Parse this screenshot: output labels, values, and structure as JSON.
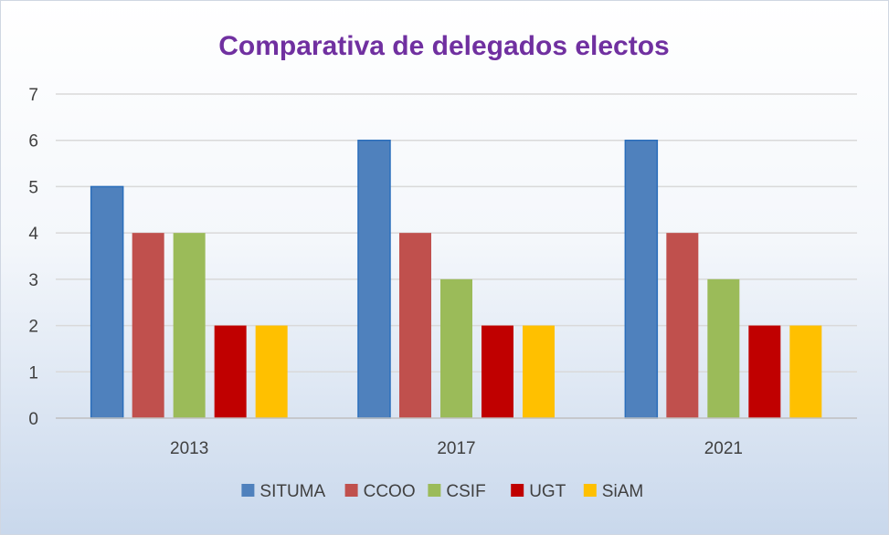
{
  "chart_data": {
    "type": "bar",
    "title": "Comparativa de delegados electos",
    "xlabel": "",
    "ylabel": "",
    "categories": [
      "2013",
      "2017",
      "2021"
    ],
    "ylim": [
      0,
      7
    ],
    "yticks": [
      "0",
      "1",
      "2",
      "3",
      "4",
      "5",
      "6",
      "7"
    ],
    "grid": true,
    "legend_position": "bottom",
    "series": [
      {
        "name": "SITUMA",
        "values": [
          5,
          6,
          6
        ],
        "color": "#4f81bd"
      },
      {
        "name": "CCOO",
        "values": [
          4,
          4,
          4
        ],
        "color": "#c0504d"
      },
      {
        "name": "CSIF",
        "values": [
          4,
          3,
          3
        ],
        "color": "#9bbb59"
      },
      {
        "name": "UGT",
        "values": [
          2,
          2,
          2
        ],
        "color": "#c00000"
      },
      {
        "name": "SiAM",
        "values": [
          2,
          2,
          2
        ],
        "color": "#ffc000"
      }
    ]
  },
  "colors": {
    "title": "#7030a0",
    "grid": "#d9d9d9",
    "axis": "#bfbfbf"
  }
}
